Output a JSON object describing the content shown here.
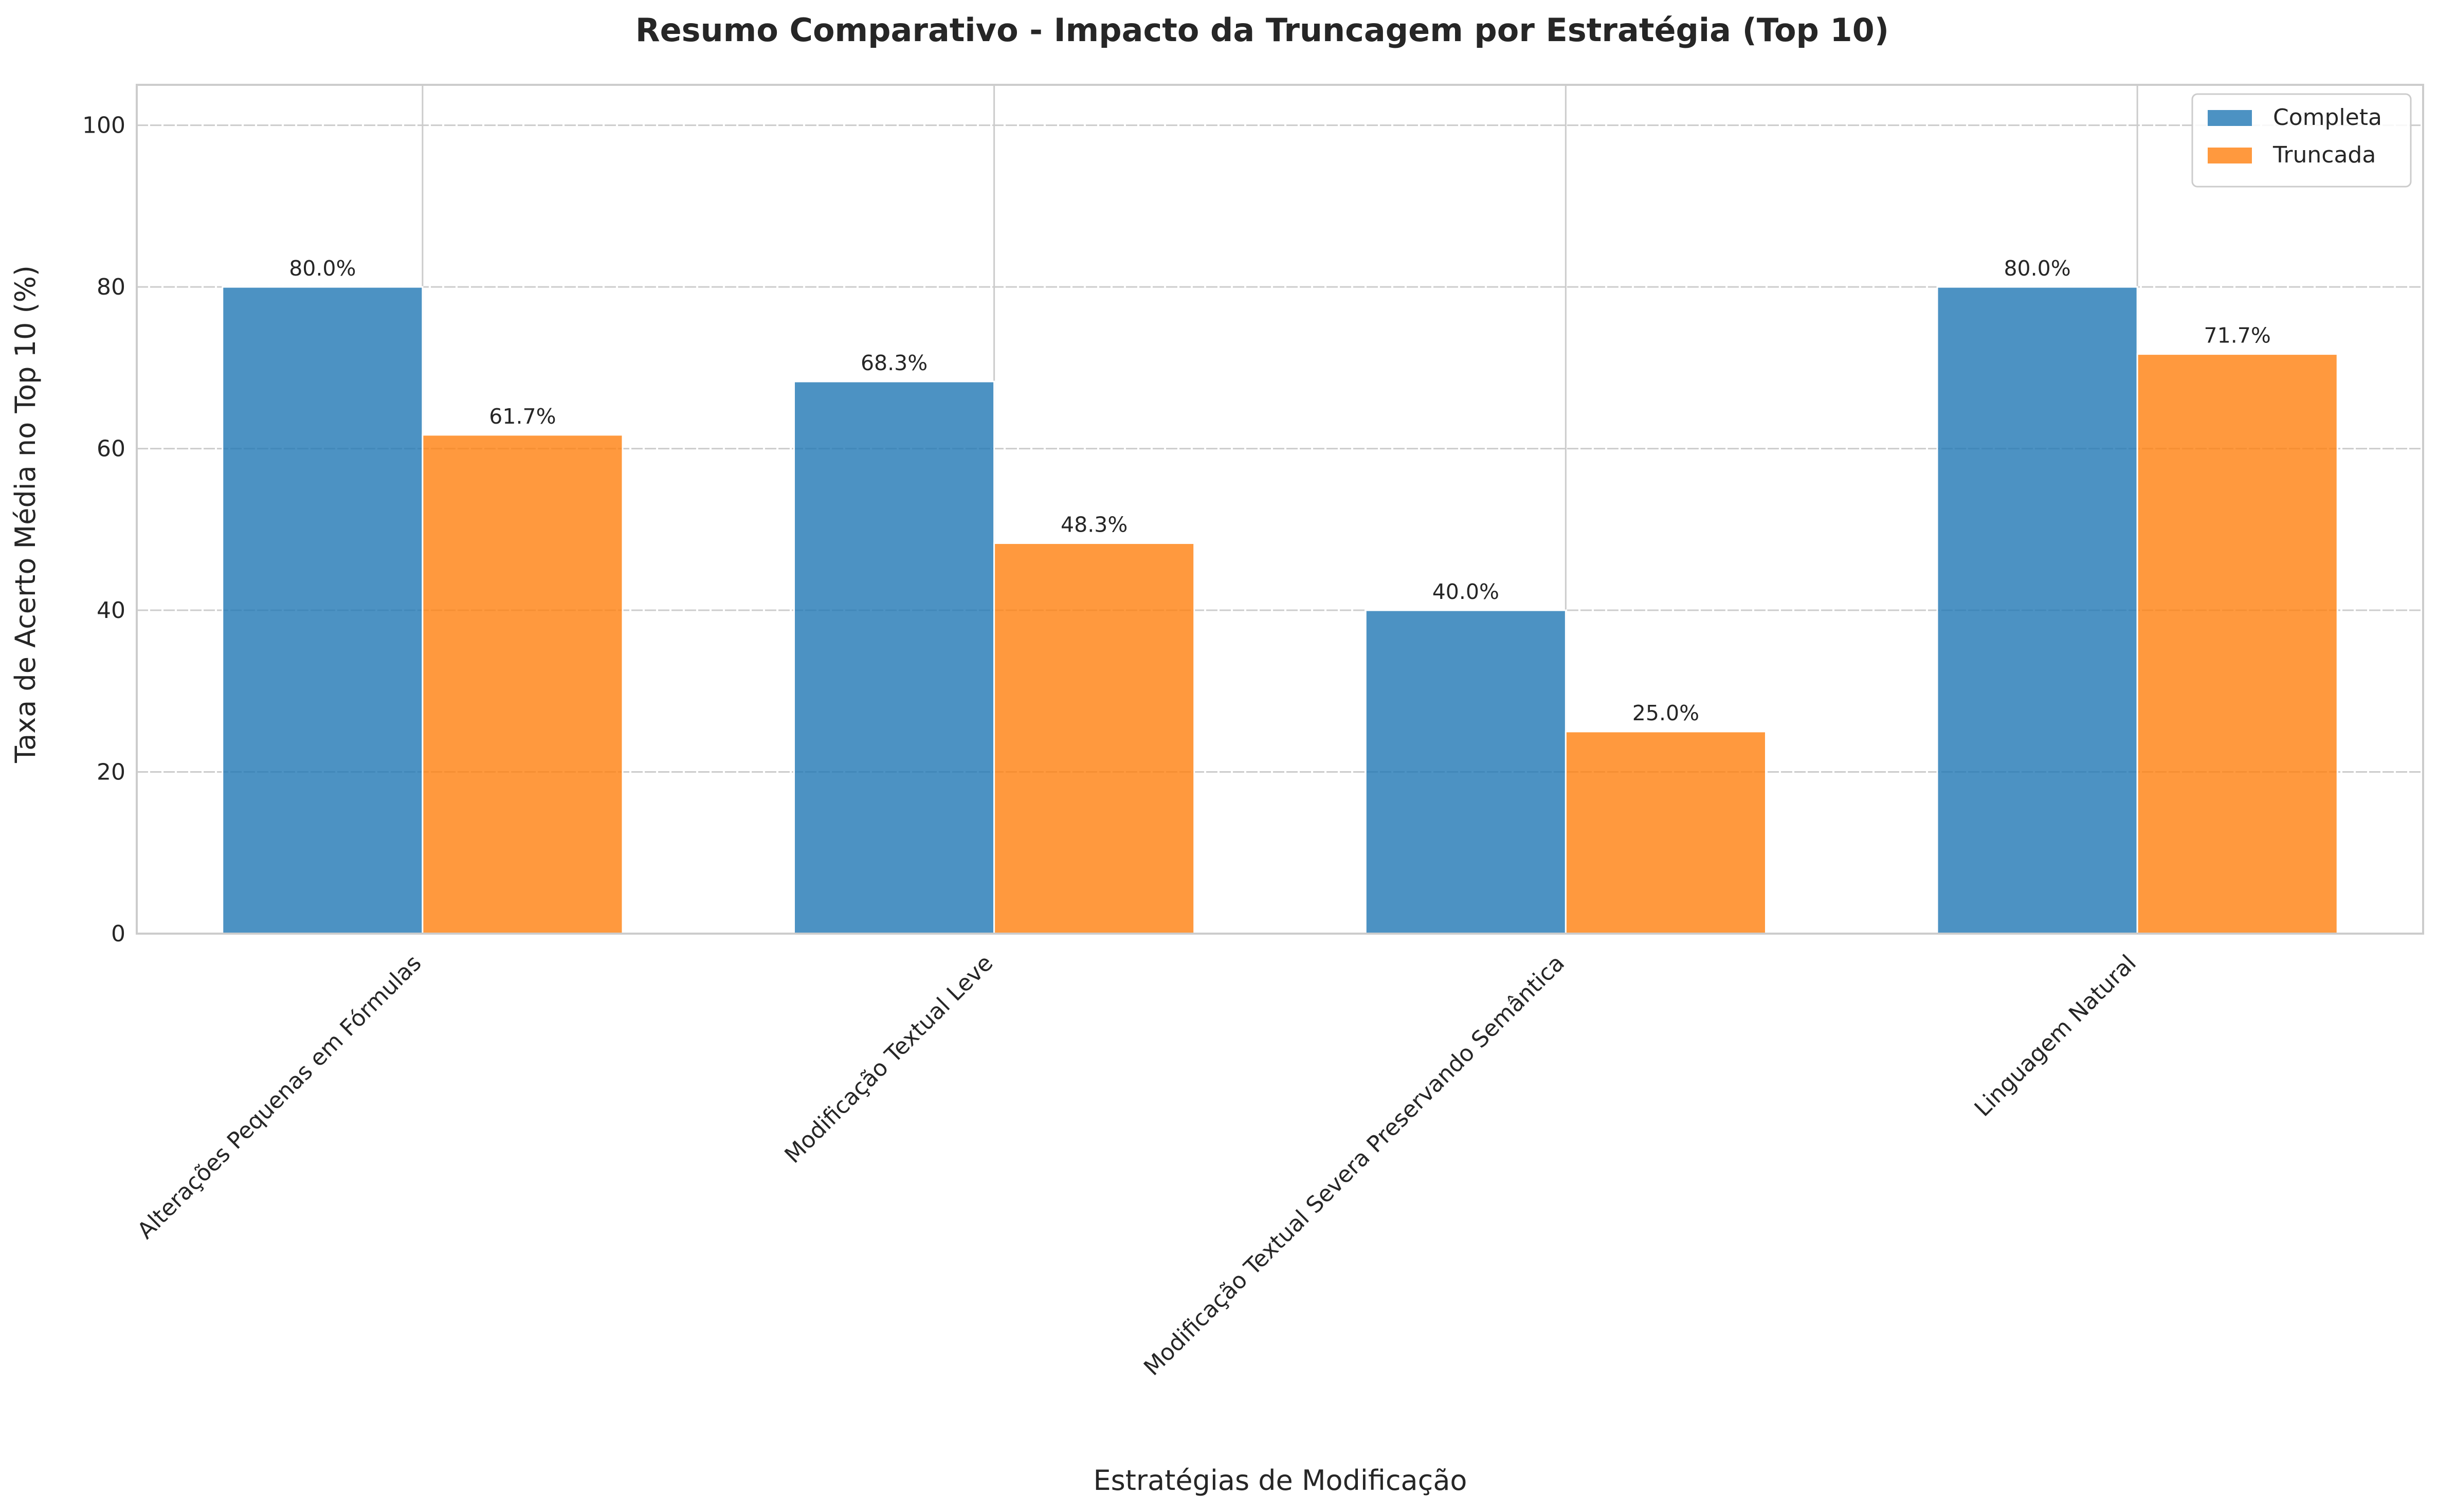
{
  "chart_data": {
    "type": "bar",
    "title": "Resumo Comparativo - Impacto da Truncagem por Estratégia (Top 10)",
    "xlabel": "Estratégias de Modificação",
    "ylabel": "Taxa de Acerto Média no Top 10 (%)",
    "categories": [
      "Alterações Pequenas em Fórmulas",
      "Modificação Textual Leve",
      "Modificação Textual Severa Preservando Semântica",
      "Linguagem Natural"
    ],
    "series": [
      {
        "name": "Completa",
        "color": "#1f77b4",
        "values": [
          80.0,
          68.3,
          40.0,
          80.0
        ]
      },
      {
        "name": "Truncada",
        "color": "#ff7f0e",
        "values": [
          61.7,
          48.3,
          25.0,
          71.7
        ]
      }
    ],
    "data_labels": [
      [
        "80.0%",
        "68.3%",
        "40.0%",
        "80.0%"
      ],
      [
        "61.7%",
        "48.3%",
        "25.0%",
        "71.7%"
      ]
    ],
    "ylim": [
      0,
      105
    ],
    "yticks": [
      0,
      20,
      40,
      60,
      80,
      100
    ],
    "grid": true,
    "legend_position": "top-right"
  }
}
